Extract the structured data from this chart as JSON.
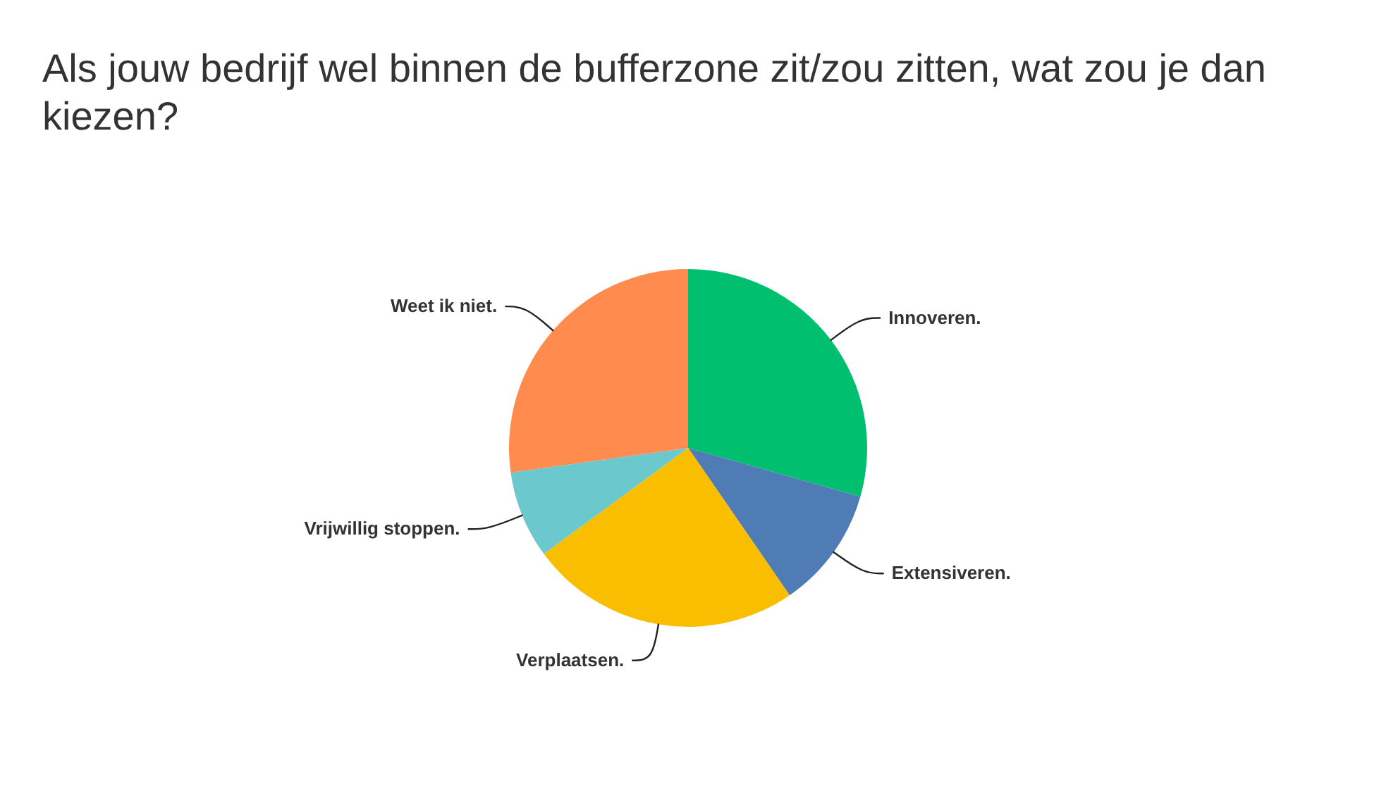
{
  "chart_data": {
    "type": "pie",
    "title": "Als jouw bedrijf wel binnen de bufferzone zit/zou zitten, wat zou je dan kiezen?",
    "categories": [
      "Innoveren.",
      "Extensiveren.",
      "Verplaatsen.",
      "Vrijwillig stoppen.",
      "Weet ik niet."
    ],
    "values": [
      29.4,
      11.0,
      24.5,
      7.9,
      27.2
    ],
    "colors": [
      "#00bf6f",
      "#507cb6",
      "#f9be00",
      "#6bc8cd",
      "#ff8b4f"
    ]
  }
}
